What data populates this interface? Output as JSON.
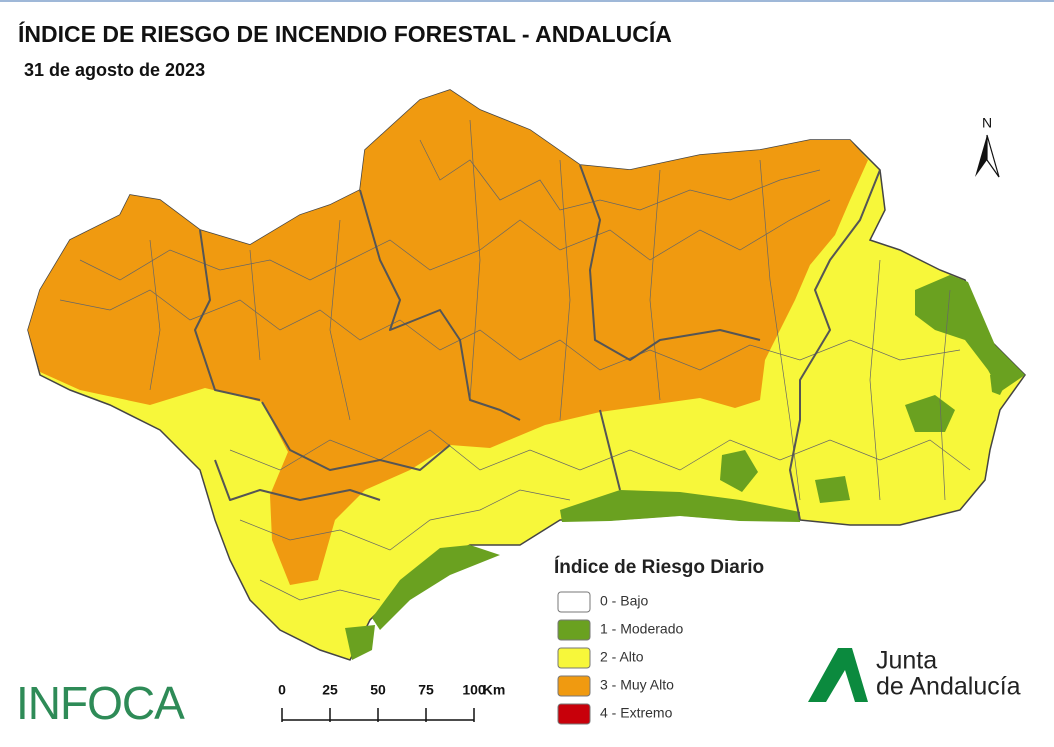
{
  "header": {
    "title": "ÍNDICE DE RIESGO DE INCENDIO FORESTAL - ANDALUCÍA",
    "date": "31 de agosto de 2023"
  },
  "north_arrow": "N",
  "legend": {
    "title": "Índice de Riesgo Diario",
    "items": [
      {
        "label": "0 - Bajo",
        "color": "#ffffff"
      },
      {
        "label": "1 - Moderado",
        "color": "#6aa120"
      },
      {
        "label": "2 - Alto",
        "color": "#f7f73a"
      },
      {
        "label": "3 - Muy Alto",
        "color": "#f09a10"
      },
      {
        "label": "4 - Extremo",
        "color": "#c8000a"
      }
    ]
  },
  "scale_bar": {
    "ticks": [
      0,
      25,
      50,
      75,
      100
    ],
    "unit": "Km"
  },
  "logos": {
    "infoca": "INFOCA",
    "junta": [
      "Junta",
      "de Andalucía"
    ]
  }
}
